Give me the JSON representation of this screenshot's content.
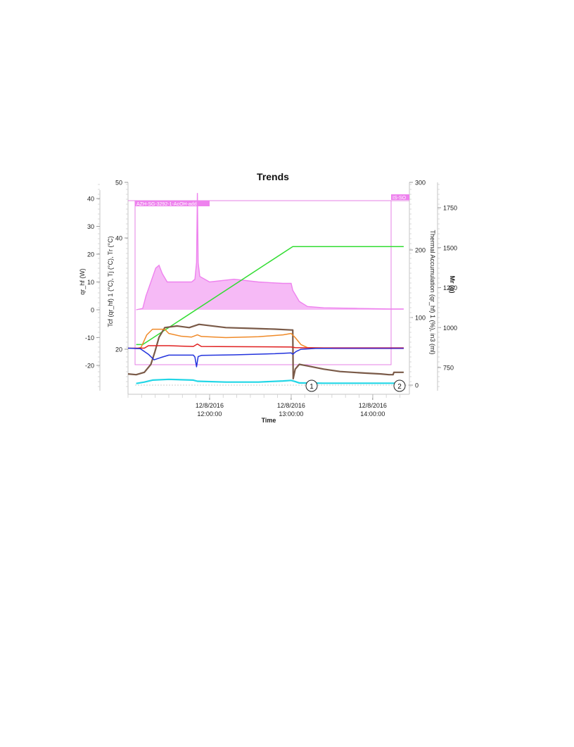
{
  "chart_data": {
    "type": "line",
    "title": "Trends",
    "xlabel": "Time",
    "x_ticks": [
      {
        "date": "12/8/2016",
        "time": "12:00:00",
        "t": 12.0
      },
      {
        "date": "12/8/2016",
        "time": "13:00:00",
        "t": 13.0
      },
      {
        "date": "12/8/2016",
        "time": "14:00:00",
        "t": 14.0
      }
    ],
    "xlim": [
      11.0,
      14.45
    ],
    "axes": [
      {
        "id": "qhf",
        "label": "qr_hf (W)",
        "ticks": [
          40,
          30,
          20,
          10,
          0,
          -10,
          -20
        ]
      },
      {
        "id": "temp",
        "label": "Tcf (qr_hf) 1 (°C), Tj (°C), Tr (°C)",
        "ticks": [
          50,
          40,
          20
        ]
      },
      {
        "id": "thermal",
        "label": "Thermal Accumulation (qr_hf) 1 (%), in3 (ml)",
        "ticks": [
          300,
          200,
          100,
          0
        ]
      },
      {
        "id": "mr",
        "label": "Mr (g)",
        "ticks": [
          1750,
          1500,
          1250,
          1000,
          750
        ]
      }
    ],
    "annotation_label_1": "AZH-SG-3292-1-AcOH-add",
    "annotation_label_2": "IS-SO",
    "markers": [
      "1",
      "2"
    ],
    "series": [
      {
        "id": "qr_hf",
        "color": "#ee82ee",
        "style": "area",
        "axis": "qhf",
        "points": [
          [
            11.1,
            0
          ],
          [
            11.18,
            0.5
          ],
          [
            11.22,
            5
          ],
          [
            11.28,
            10
          ],
          [
            11.34,
            15
          ],
          [
            11.38,
            16
          ],
          [
            11.42,
            13
          ],
          [
            11.48,
            10
          ],
          [
            11.6,
            10
          ],
          [
            11.78,
            10
          ],
          [
            11.82,
            11
          ],
          [
            11.84,
            17
          ],
          [
            11.85,
            42
          ],
          [
            11.86,
            17
          ],
          [
            11.88,
            12
          ],
          [
            12.0,
            10
          ],
          [
            12.3,
            11
          ],
          [
            12.6,
            10
          ],
          [
            12.9,
            9.5
          ],
          [
            13.0,
            9.5
          ],
          [
            13.02,
            7
          ],
          [
            13.1,
            3
          ],
          [
            13.2,
            1.2
          ],
          [
            13.4,
            0.7
          ],
          [
            13.8,
            0.5
          ],
          [
            14.2,
            0.3
          ],
          [
            14.38,
            0.3
          ]
        ]
      },
      {
        "id": "thermal_accumulation",
        "color": "#33dd33",
        "style": "line",
        "axis": "thermal",
        "points": [
          [
            11.1,
            60
          ],
          [
            11.18,
            60
          ],
          [
            13.02,
            205
          ],
          [
            14.38,
            205
          ]
        ]
      },
      {
        "id": "mr",
        "color": "#7a5a48",
        "style": "line",
        "axis": "mr",
        "points": [
          [
            11.0,
            710
          ],
          [
            11.1,
            705
          ],
          [
            11.2,
            720
          ],
          [
            11.28,
            770
          ],
          [
            11.33,
            850
          ],
          [
            11.38,
            940
          ],
          [
            11.45,
            1000
          ],
          [
            11.6,
            1010
          ],
          [
            11.75,
            1000
          ],
          [
            11.87,
            1020
          ],
          [
            11.95,
            1015
          ],
          [
            12.2,
            1000
          ],
          [
            12.5,
            995
          ],
          [
            12.8,
            990
          ],
          [
            13.0,
            985
          ],
          [
            13.02,
            985
          ],
          [
            13.025,
            680
          ],
          [
            13.05,
            740
          ],
          [
            13.1,
            770
          ],
          [
            13.2,
            760
          ],
          [
            13.4,
            740
          ],
          [
            13.6,
            725
          ],
          [
            13.9,
            715
          ],
          [
            14.1,
            710
          ],
          [
            14.2,
            705
          ],
          [
            14.25,
            705
          ],
          [
            14.26,
            720
          ],
          [
            14.38,
            720
          ]
        ]
      },
      {
        "id": "tcf",
        "color": "#f08a28",
        "style": "line",
        "axis": "qhf",
        "points": [
          [
            11.1,
            -14
          ],
          [
            11.16,
            -13.5
          ],
          [
            11.23,
            -9
          ],
          [
            11.3,
            -7
          ],
          [
            11.45,
            -7
          ],
          [
            11.5,
            -8.5
          ],
          [
            11.65,
            -9.5
          ],
          [
            11.78,
            -9.8
          ],
          [
            11.85,
            -9
          ],
          [
            11.9,
            -9.6
          ],
          [
            12.2,
            -10
          ],
          [
            12.6,
            -9.7
          ],
          [
            12.9,
            -9
          ],
          [
            13.0,
            -8.5
          ],
          [
            13.05,
            -10
          ],
          [
            13.12,
            -12.5
          ],
          [
            13.2,
            -13.6
          ],
          [
            13.5,
            -13.8
          ],
          [
            14.2,
            -13.8
          ],
          [
            14.38,
            -13.8
          ]
        ]
      },
      {
        "id": "tr",
        "color": "#e02020",
        "style": "line",
        "axis": "qhf",
        "points": [
          [
            11.0,
            -13.8
          ],
          [
            11.2,
            -13.8
          ],
          [
            11.25,
            -12.9
          ],
          [
            11.5,
            -12.9
          ],
          [
            11.8,
            -13.2
          ],
          [
            11.85,
            -12.3
          ],
          [
            11.9,
            -13.2
          ],
          [
            12.5,
            -13.3
          ],
          [
            13.0,
            -13.4
          ],
          [
            13.05,
            -13.6
          ],
          [
            13.3,
            -13.7
          ],
          [
            14.38,
            -13.7
          ]
        ]
      },
      {
        "id": "tj",
        "color": "#2233dd",
        "style": "line",
        "axis": "qhf",
        "points": [
          [
            11.0,
            -13.8
          ],
          [
            11.15,
            -14
          ],
          [
            11.25,
            -16
          ],
          [
            11.32,
            -18
          ],
          [
            11.4,
            -17.2
          ],
          [
            11.5,
            -16.3
          ],
          [
            11.8,
            -16.3
          ],
          [
            11.82,
            -17
          ],
          [
            11.84,
            -20.5
          ],
          [
            11.86,
            -16.8
          ],
          [
            11.9,
            -16.4
          ],
          [
            12.3,
            -16.2
          ],
          [
            12.8,
            -15.8
          ],
          [
            13.0,
            -15.5
          ],
          [
            13.02,
            -16
          ],
          [
            13.06,
            -15
          ],
          [
            13.12,
            -14.2
          ],
          [
            13.3,
            -13.9
          ],
          [
            14.38,
            -13.9
          ]
        ]
      },
      {
        "id": "tj_end",
        "color": "#6a1fa8",
        "style": "line",
        "axis": "qhf",
        "points": [
          [
            13.5,
            -13.8
          ],
          [
            14.38,
            -13.8
          ]
        ]
      },
      {
        "id": "in3",
        "color": "#22d6e6",
        "style": "line",
        "axis": "qhf",
        "points": [
          [
            11.1,
            -26.5
          ],
          [
            11.2,
            -26
          ],
          [
            11.3,
            -25.3
          ],
          [
            11.5,
            -25
          ],
          [
            11.8,
            -25.3
          ],
          [
            11.85,
            -25.7
          ],
          [
            12.2,
            -26
          ],
          [
            12.6,
            -26
          ],
          [
            12.9,
            -25.6
          ],
          [
            13.0,
            -25.4
          ],
          [
            13.05,
            -25.8
          ],
          [
            13.1,
            -26.3
          ],
          [
            13.4,
            -26.4
          ],
          [
            14.38,
            -26.4
          ]
        ]
      }
    ]
  }
}
